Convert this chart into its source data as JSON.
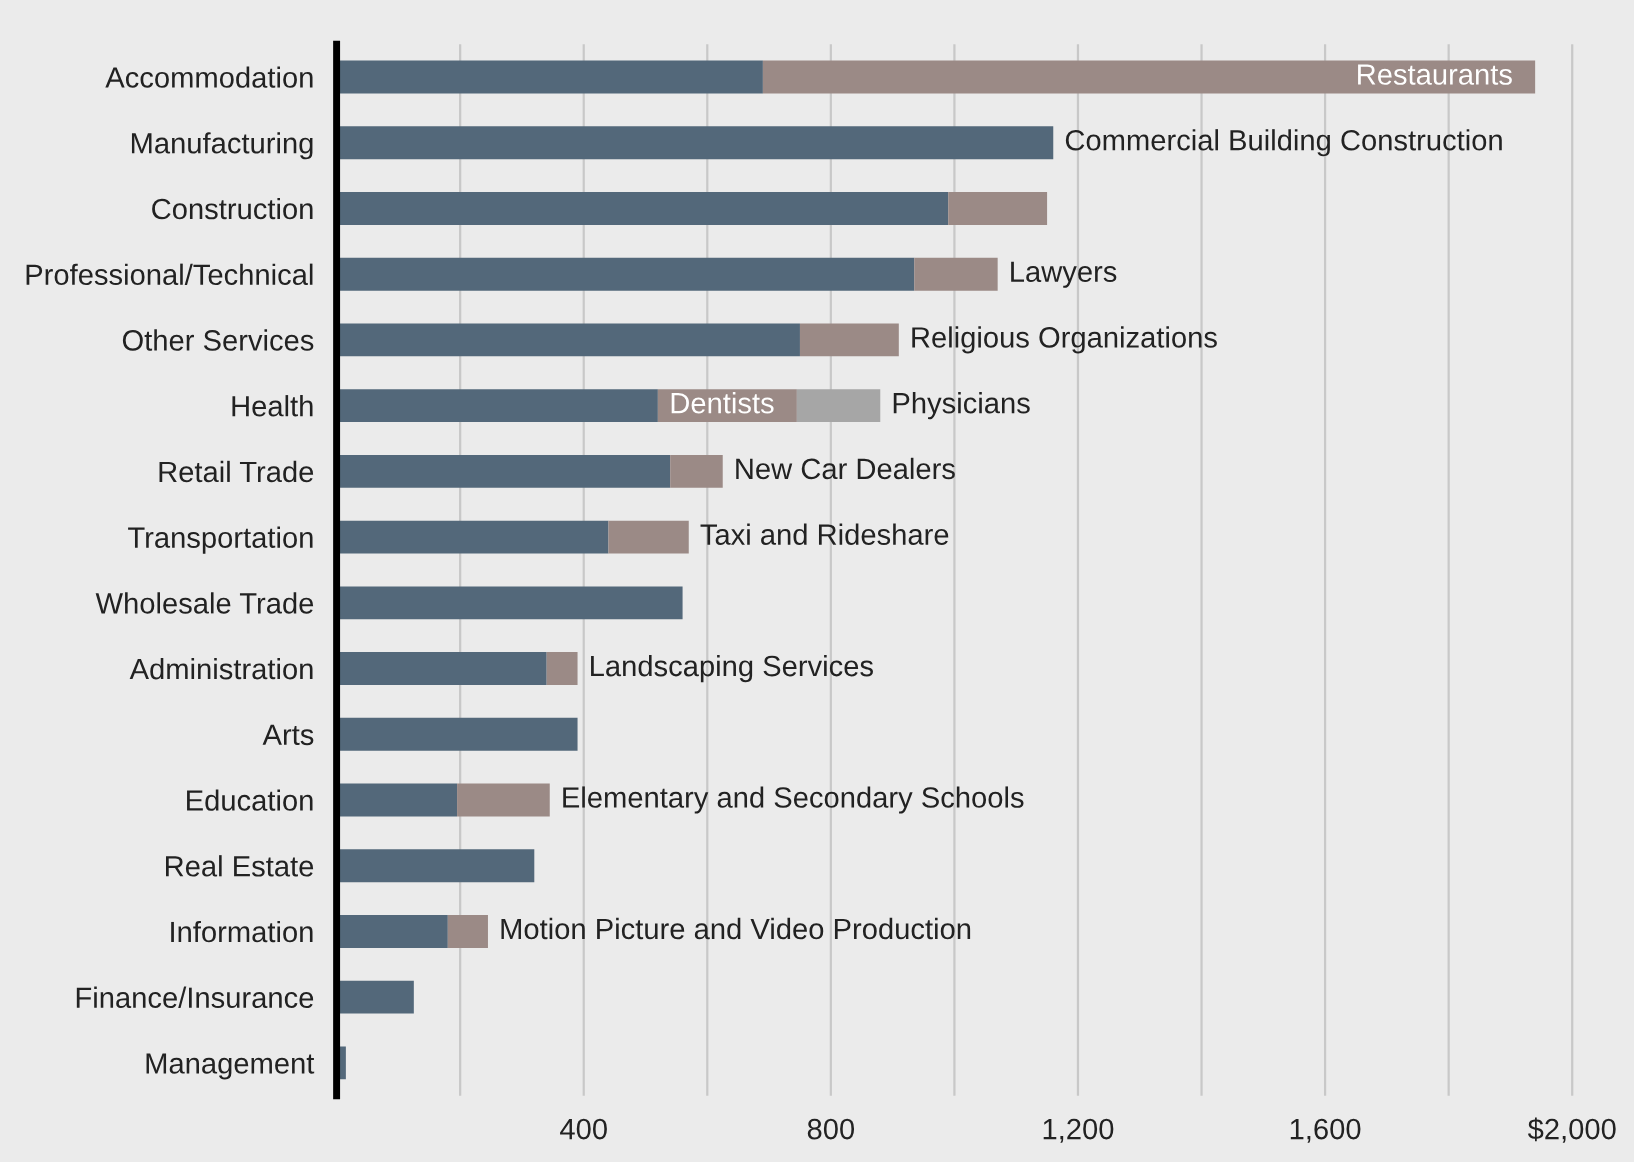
{
  "chart_data": {
    "type": "bar",
    "orientation": "horizontal",
    "stacked": true,
    "categories": [
      "Accommodation",
      "Manufacturing",
      "Construction",
      "Professional/Technical",
      "Other Services",
      "Health",
      "Retail Trade",
      "Transportation",
      "Wholesale Trade",
      "Administration",
      "Arts",
      "Education",
      "Real Estate",
      "Information",
      "Finance/Insurance",
      "Management"
    ],
    "series": [
      {
        "color": "#53687a",
        "values": [
          690,
          1160,
          990,
          935,
          750,
          520,
          540,
          440,
          560,
          340,
          390,
          195,
          320,
          180,
          125,
          15
        ],
        "value_labels": [
          null,
          "Commercial Building Construction",
          null,
          null,
          null,
          null,
          null,
          null,
          null,
          null,
          null,
          null,
          null,
          null,
          null,
          null
        ]
      },
      {
        "color": "#9b8a86",
        "values": [
          1250,
          null,
          160,
          135,
          160,
          225,
          85,
          130,
          null,
          50,
          null,
          150,
          null,
          65,
          null,
          null
        ],
        "value_labels": [
          "Restaurants",
          null,
          null,
          "Lawyers",
          "Religious Organizations",
          "Dentists",
          "New Car Dealers",
          "Taxi and Rideshare",
          null,
          "Landscaping Services",
          null,
          "Elementary and Secondary Schools",
          null,
          "Motion Picture and Video Production",
          null,
          null
        ]
      },
      {
        "color": "#a6a6a6",
        "values": [
          null,
          null,
          null,
          null,
          null,
          135,
          null,
          null,
          null,
          null,
          null,
          null,
          null,
          null,
          null,
          null
        ],
        "value_labels": [
          null,
          null,
          null,
          null,
          null,
          "Physicians",
          null,
          null,
          null,
          null,
          null,
          null,
          null,
          null,
          null,
          null
        ]
      }
    ],
    "xlim": [
      0,
      2100
    ],
    "xticks": [
      {
        "value": 200,
        "label": null
      },
      400,
      {
        "value": 600,
        "label": null
      },
      800,
      {
        "value": 1000,
        "label": null
      },
      {
        "value": 1200,
        "label": "1,200"
      },
      {
        "value": 1400,
        "label": null
      },
      {
        "value": 1600,
        "label": "1,600"
      },
      {
        "value": 1800,
        "label": null
      },
      {
        "value": 2000,
        "label": "$2,000"
      }
    ],
    "grid": "x",
    "legend": false
  }
}
